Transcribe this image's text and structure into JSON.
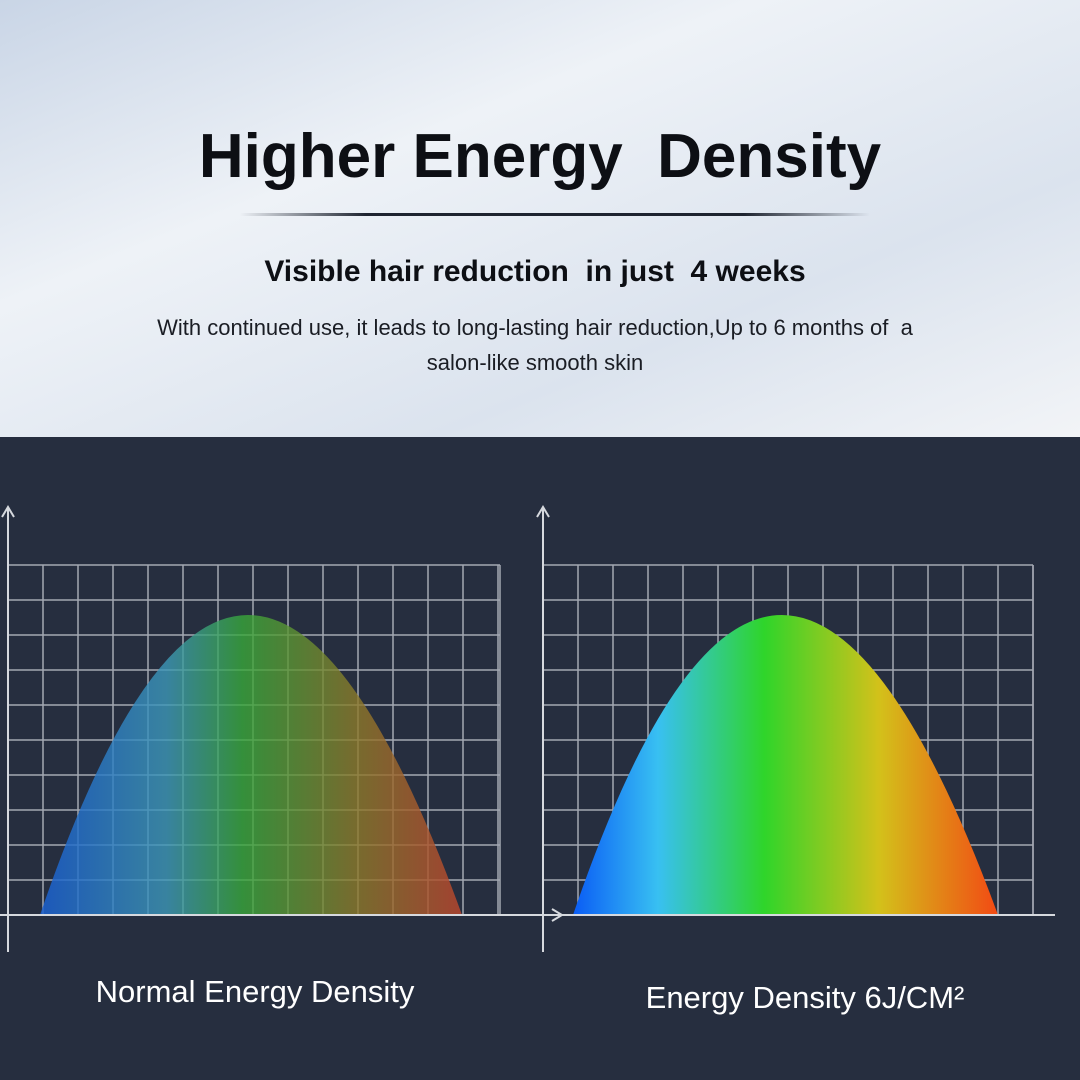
{
  "header": {
    "title": "Higher Energy  Density",
    "subtitle": "Visible hair reduction  in just  4 weeks",
    "description": [
      "With continued use, it leads to long-lasting hair reduction,Up to 6 months of  a",
      "salon-like smooth skin"
    ]
  },
  "charts": [
    {
      "label": "Normal Energy Density"
    },
    {
      "label": "Energy Density 6J/CM²"
    }
  ]
}
